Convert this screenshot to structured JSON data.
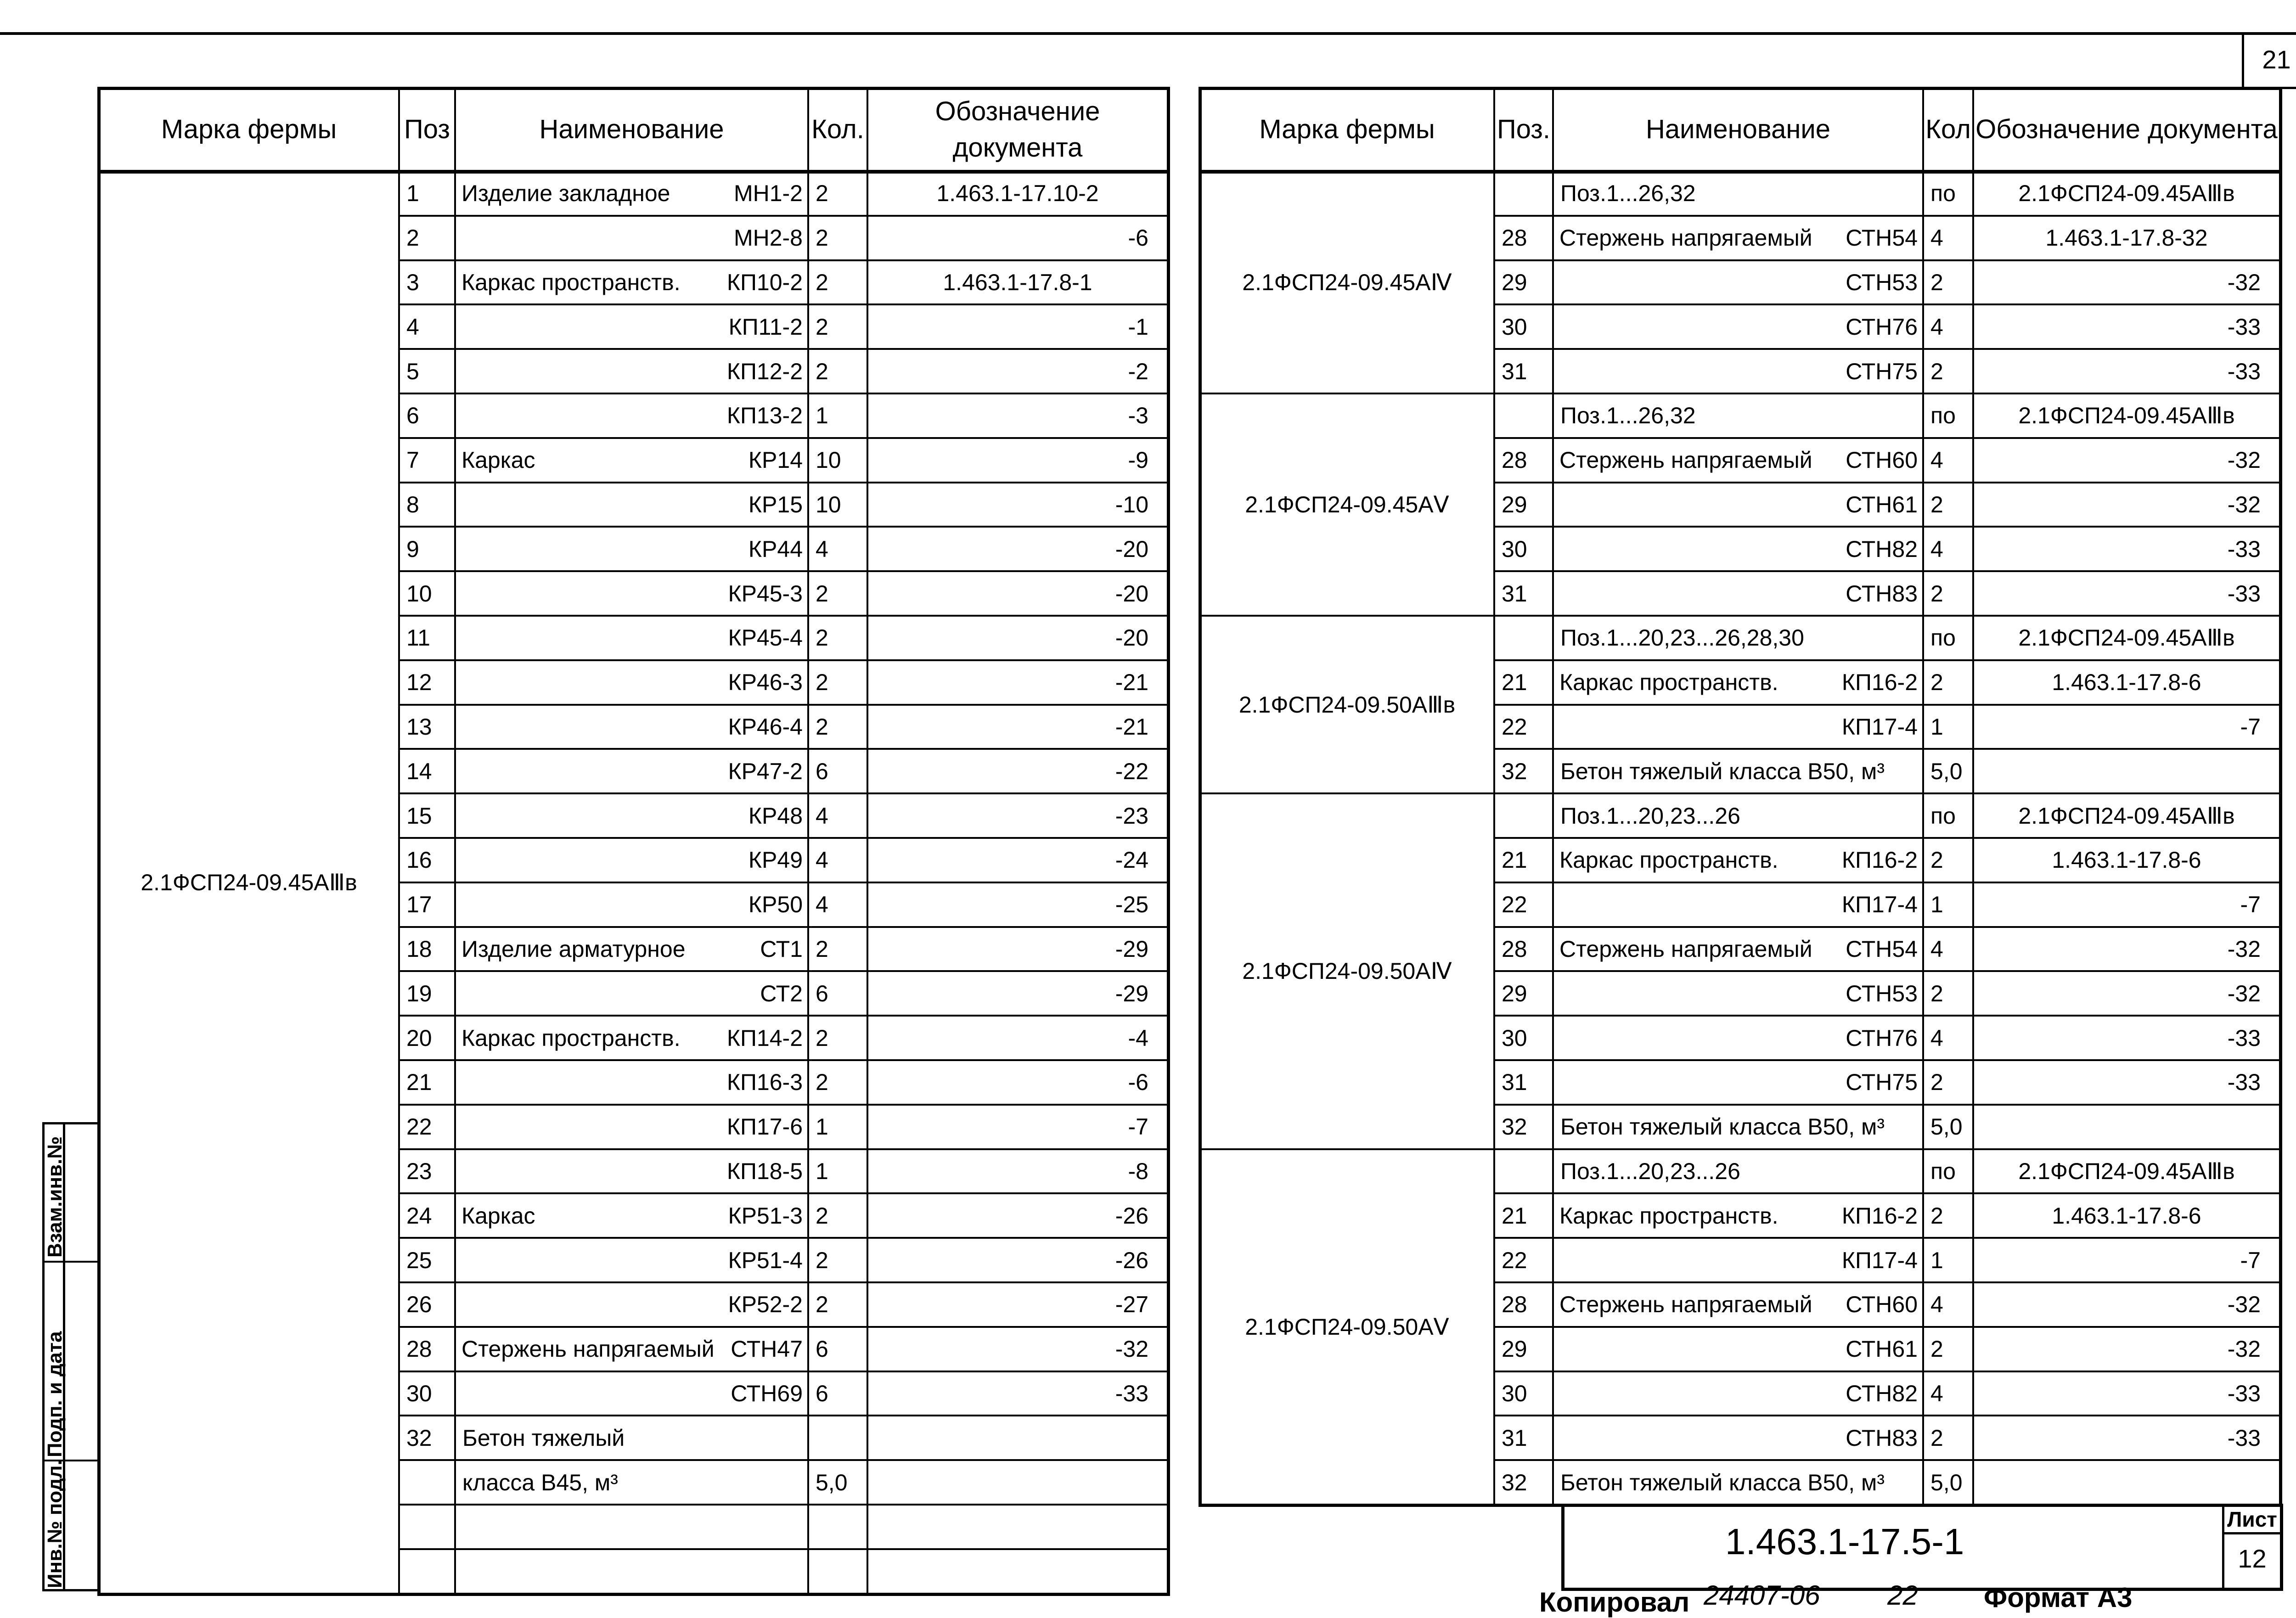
{
  "sheet_corner_number": "21",
  "headers": {
    "mark": "Марка фермы",
    "pos": "Поз",
    "pos_right": "Поз.",
    "name": "Наименование",
    "qty": "Кол.",
    "qty_right": "Кол",
    "doc": "Обозначение документа"
  },
  "left_table": {
    "mark": "2.1ФСП24-09.45АⅢв",
    "rows": [
      {
        "pos": "1",
        "name": "Изделие закладное",
        "code": "МН1-2",
        "qty": "2",
        "doc": "1.463.1-17.10-2"
      },
      {
        "pos": "2",
        "name": "",
        "code": "МН2-8",
        "qty": "2",
        "doc": "-6"
      },
      {
        "pos": "3",
        "name": "Каркас пространств.",
        "code": "КП10-2",
        "qty": "2",
        "doc": "1.463.1-17.8-1"
      },
      {
        "pos": "4",
        "name": "",
        "code": "КП11-2",
        "qty": "2",
        "doc": "-1"
      },
      {
        "pos": "5",
        "name": "",
        "code": "КП12-2",
        "qty": "2",
        "doc": "-2"
      },
      {
        "pos": "6",
        "name": "",
        "code": "КП13-2",
        "qty": "1",
        "doc": "-3"
      },
      {
        "pos": "7",
        "name": "Каркас",
        "code": "КР14",
        "qty": "10",
        "doc": "-9"
      },
      {
        "pos": "8",
        "name": "",
        "code": "КР15",
        "qty": "10",
        "doc": "-10"
      },
      {
        "pos": "9",
        "name": "",
        "code": "КР44",
        "qty": "4",
        "doc": "-20"
      },
      {
        "pos": "10",
        "name": "",
        "code": "КР45-3",
        "qty": "2",
        "doc": "-20"
      },
      {
        "pos": "11",
        "name": "",
        "code": "КР45-4",
        "qty": "2",
        "doc": "-20"
      },
      {
        "pos": "12",
        "name": "",
        "code": "КР46-3",
        "qty": "2",
        "doc": "-21"
      },
      {
        "pos": "13",
        "name": "",
        "code": "КР46-4",
        "qty": "2",
        "doc": "-21"
      },
      {
        "pos": "14",
        "name": "",
        "code": "КР47-2",
        "qty": "6",
        "doc": "-22"
      },
      {
        "pos": "15",
        "name": "",
        "code": "КР48",
        "qty": "4",
        "doc": "-23"
      },
      {
        "pos": "16",
        "name": "",
        "code": "КР49",
        "qty": "4",
        "doc": "-24"
      },
      {
        "pos": "17",
        "name": "",
        "code": "КР50",
        "qty": "4",
        "doc": "-25"
      },
      {
        "pos": "18",
        "name": "Изделие арматурное",
        "code": "СТ1",
        "qty": "2",
        "doc": "-29"
      },
      {
        "pos": "19",
        "name": "",
        "code": "СТ2",
        "qty": "6",
        "doc": "-29"
      },
      {
        "pos": "20",
        "name": "Каркас пространств.",
        "code": "КП14-2",
        "qty": "2",
        "doc": "-4"
      },
      {
        "pos": "21",
        "name": "",
        "code": "КП16-3",
        "qty": "2",
        "doc": "-6"
      },
      {
        "pos": "22",
        "name": "",
        "code": "КП17-6",
        "qty": "1",
        "doc": "-7"
      },
      {
        "pos": "23",
        "name": "",
        "code": "КП18-5",
        "qty": "1",
        "doc": "-8"
      },
      {
        "pos": "24",
        "name": "Каркас",
        "code": "КР51-3",
        "qty": "2",
        "doc": "-26"
      },
      {
        "pos": "25",
        "name": "",
        "code": "КР51-4",
        "qty": "2",
        "doc": "-26"
      },
      {
        "pos": "26",
        "name": "",
        "code": "КР52-2",
        "qty": "2",
        "doc": "-27"
      },
      {
        "pos": "28",
        "name": "Стержень напрягаемый",
        "code": "СТН47",
        "qty": "6",
        "doc": "-32"
      },
      {
        "pos": "30",
        "name": "",
        "code": "СТН69",
        "qty": "6",
        "doc": "-33"
      },
      {
        "pos": "32",
        "name": "Бетон тяжелый",
        "code": "",
        "qty": "",
        "doc": ""
      },
      {
        "pos": "",
        "name": "класса В45, м³",
        "code": "",
        "qty": "5,0",
        "doc": ""
      },
      {
        "pos": "",
        "name": "",
        "code": "",
        "qty": "",
        "doc": ""
      },
      {
        "pos": "",
        "name": "",
        "code": "",
        "qty": "",
        "doc": ""
      }
    ]
  },
  "right_table": {
    "groups": [
      {
        "mark": "2.1ФСП24-09.45АⅣ",
        "rows": [
          {
            "pos": "",
            "name": "Поз.1...26,32",
            "code": "",
            "qty": "по",
            "doc": "2.1ФСП24-09.45АⅢв"
          },
          {
            "pos": "28",
            "name": "Стержень напрягаемый",
            "code": "СТН54",
            "qty": "4",
            "doc": "1.463.1-17.8-32"
          },
          {
            "pos": "29",
            "name": "",
            "code": "СТН53",
            "qty": "2",
            "doc": "-32"
          },
          {
            "pos": "30",
            "name": "",
            "code": "СТН76",
            "qty": "4",
            "doc": "-33"
          },
          {
            "pos": "31",
            "name": "",
            "code": "СТН75",
            "qty": "2",
            "doc": "-33"
          }
        ]
      },
      {
        "mark": "2.1ФСП24-09.45АⅤ",
        "rows": [
          {
            "pos": "",
            "name": "Поз.1...26,32",
            "code": "",
            "qty": "по",
            "doc": "2.1ФСП24-09.45АⅢв"
          },
          {
            "pos": "28",
            "name": "Стержень напрягаемый",
            "code": "СТН60",
            "qty": "4",
            "doc": "-32"
          },
          {
            "pos": "29",
            "name": "",
            "code": "СТН61",
            "qty": "2",
            "doc": "-32"
          },
          {
            "pos": "30",
            "name": "",
            "code": "СТН82",
            "qty": "4",
            "doc": "-33"
          },
          {
            "pos": "31",
            "name": "",
            "code": "СТН83",
            "qty": "2",
            "doc": "-33"
          }
        ]
      },
      {
        "mark": "2.1ФСП24-09.50АⅢв",
        "rows": [
          {
            "pos": "",
            "name": "Поз.1...20,23...26,28,30",
            "code": "",
            "qty": "по",
            "doc": "2.1ФСП24-09.45АⅢв"
          },
          {
            "pos": "21",
            "name": "Каркас пространств.",
            "code": "КП16-2",
            "qty": "2",
            "doc": "1.463.1-17.8-6"
          },
          {
            "pos": "22",
            "name": "",
            "code": "КП17-4",
            "qty": "1",
            "doc": "-7"
          },
          {
            "pos": "32",
            "name": "Бетон тяжелый класса В50, м³",
            "code": "",
            "qty": "5,0",
            "doc": ""
          }
        ]
      },
      {
        "mark": "2.1ФСП24-09.50АⅣ",
        "rows": [
          {
            "pos": "",
            "name": "Поз.1...20,23...26",
            "code": "",
            "qty": "по",
            "doc": "2.1ФСП24-09.45АⅢв"
          },
          {
            "pos": "21",
            "name": "Каркас пространств.",
            "code": "КП16-2",
            "qty": "2",
            "doc": "1.463.1-17.8-6"
          },
          {
            "pos": "22",
            "name": "",
            "code": "КП17-4",
            "qty": "1",
            "doc": "-7"
          },
          {
            "pos": "28",
            "name": "Стержень напрягаемый",
            "code": "СТН54",
            "qty": "4",
            "doc": "-32"
          },
          {
            "pos": "29",
            "name": "",
            "code": "СТН53",
            "qty": "2",
            "doc": "-32"
          },
          {
            "pos": "30",
            "name": "",
            "code": "СТН76",
            "qty": "4",
            "doc": "-33"
          },
          {
            "pos": "31",
            "name": "",
            "code": "СТН75",
            "qty": "2",
            "doc": "-33"
          },
          {
            "pos": "32",
            "name": "Бетон тяжелый класса В50, м³",
            "code": "",
            "qty": "5,0",
            "doc": ""
          }
        ]
      },
      {
        "mark": "2.1ФСП24-09.50АⅤ",
        "rows": [
          {
            "pos": "",
            "name": "Поз.1...20,23...26",
            "code": "",
            "qty": "по",
            "doc": "2.1ФСП24-09.45АⅢв"
          },
          {
            "pos": "21",
            "name": "Каркас пространств.",
            "code": "КП16-2",
            "qty": "2",
            "doc": "1.463.1-17.8-6"
          },
          {
            "pos": "22",
            "name": "",
            "code": "КП17-4",
            "qty": "1",
            "doc": "-7"
          },
          {
            "pos": "28",
            "name": "Стержень напрягаемый",
            "code": "СТН60",
            "qty": "4",
            "doc": "-32"
          },
          {
            "pos": "29",
            "name": "",
            "code": "СТН61",
            "qty": "2",
            "doc": "-32"
          },
          {
            "pos": "30",
            "name": "",
            "code": "СТН82",
            "qty": "4",
            "doc": "-33"
          },
          {
            "pos": "31",
            "name": "",
            "code": "СТН83",
            "qty": "2",
            "doc": "-33"
          },
          {
            "pos": "32",
            "name": "Бетон тяжелый класса В50, м³",
            "code": "",
            "qty": "5,0",
            "doc": ""
          }
        ]
      }
    ]
  },
  "title_block": {
    "designation": "1.463.1-17.5-1",
    "sheet_label": "Лист",
    "sheet_number": "12"
  },
  "side_stamp": {
    "inv_podl": "Инв.№ подл.",
    "podp_data": "Подп. и дата",
    "vzam_inv": "Взам.инв.№"
  },
  "footer": {
    "copied_label": "Копировал",
    "order_number": "24407-06",
    "order_suffix": "22",
    "format": "Формат А3"
  }
}
